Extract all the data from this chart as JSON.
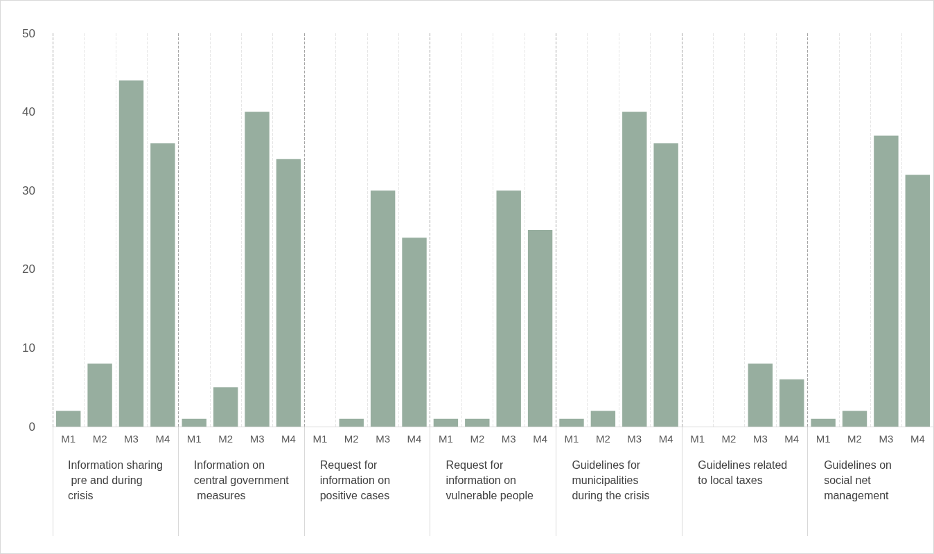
{
  "chart_data": {
    "type": "bar",
    "categories": [
      "M1",
      "M2",
      "M3",
      "M4",
      "M1",
      "M2",
      "M3",
      "M4",
      "M1",
      "M2",
      "M3",
      "M4",
      "M1",
      "M2",
      "M3",
      "M4",
      "M1",
      "M2",
      "M3",
      "M4",
      "M1",
      "M2",
      "M3",
      "M4",
      "M1",
      "M2",
      "M3",
      "M4"
    ],
    "values": [
      2,
      8,
      44,
      36,
      1,
      5,
      40,
      34,
      0,
      1,
      30,
      24,
      1,
      1,
      30,
      25,
      1,
      2,
      40,
      36,
      0,
      0,
      8,
      6,
      1,
      2,
      37,
      32
    ],
    "color": "#97ae9f",
    "annotations": [
      "Information sharing pre and during crisis",
      "Information on central government measures",
      "Request for information on positive cases",
      "Request for information on vulnerable people",
      "Guidelines for municipalities during the crisis",
      "Guidelines related to local taxes",
      "Guidelines on social net management"
    ],
    "ylim": [
      0,
      50
    ],
    "yticks": [
      0,
      10,
      20,
      30,
      40,
      50
    ],
    "grid": "x"
  }
}
